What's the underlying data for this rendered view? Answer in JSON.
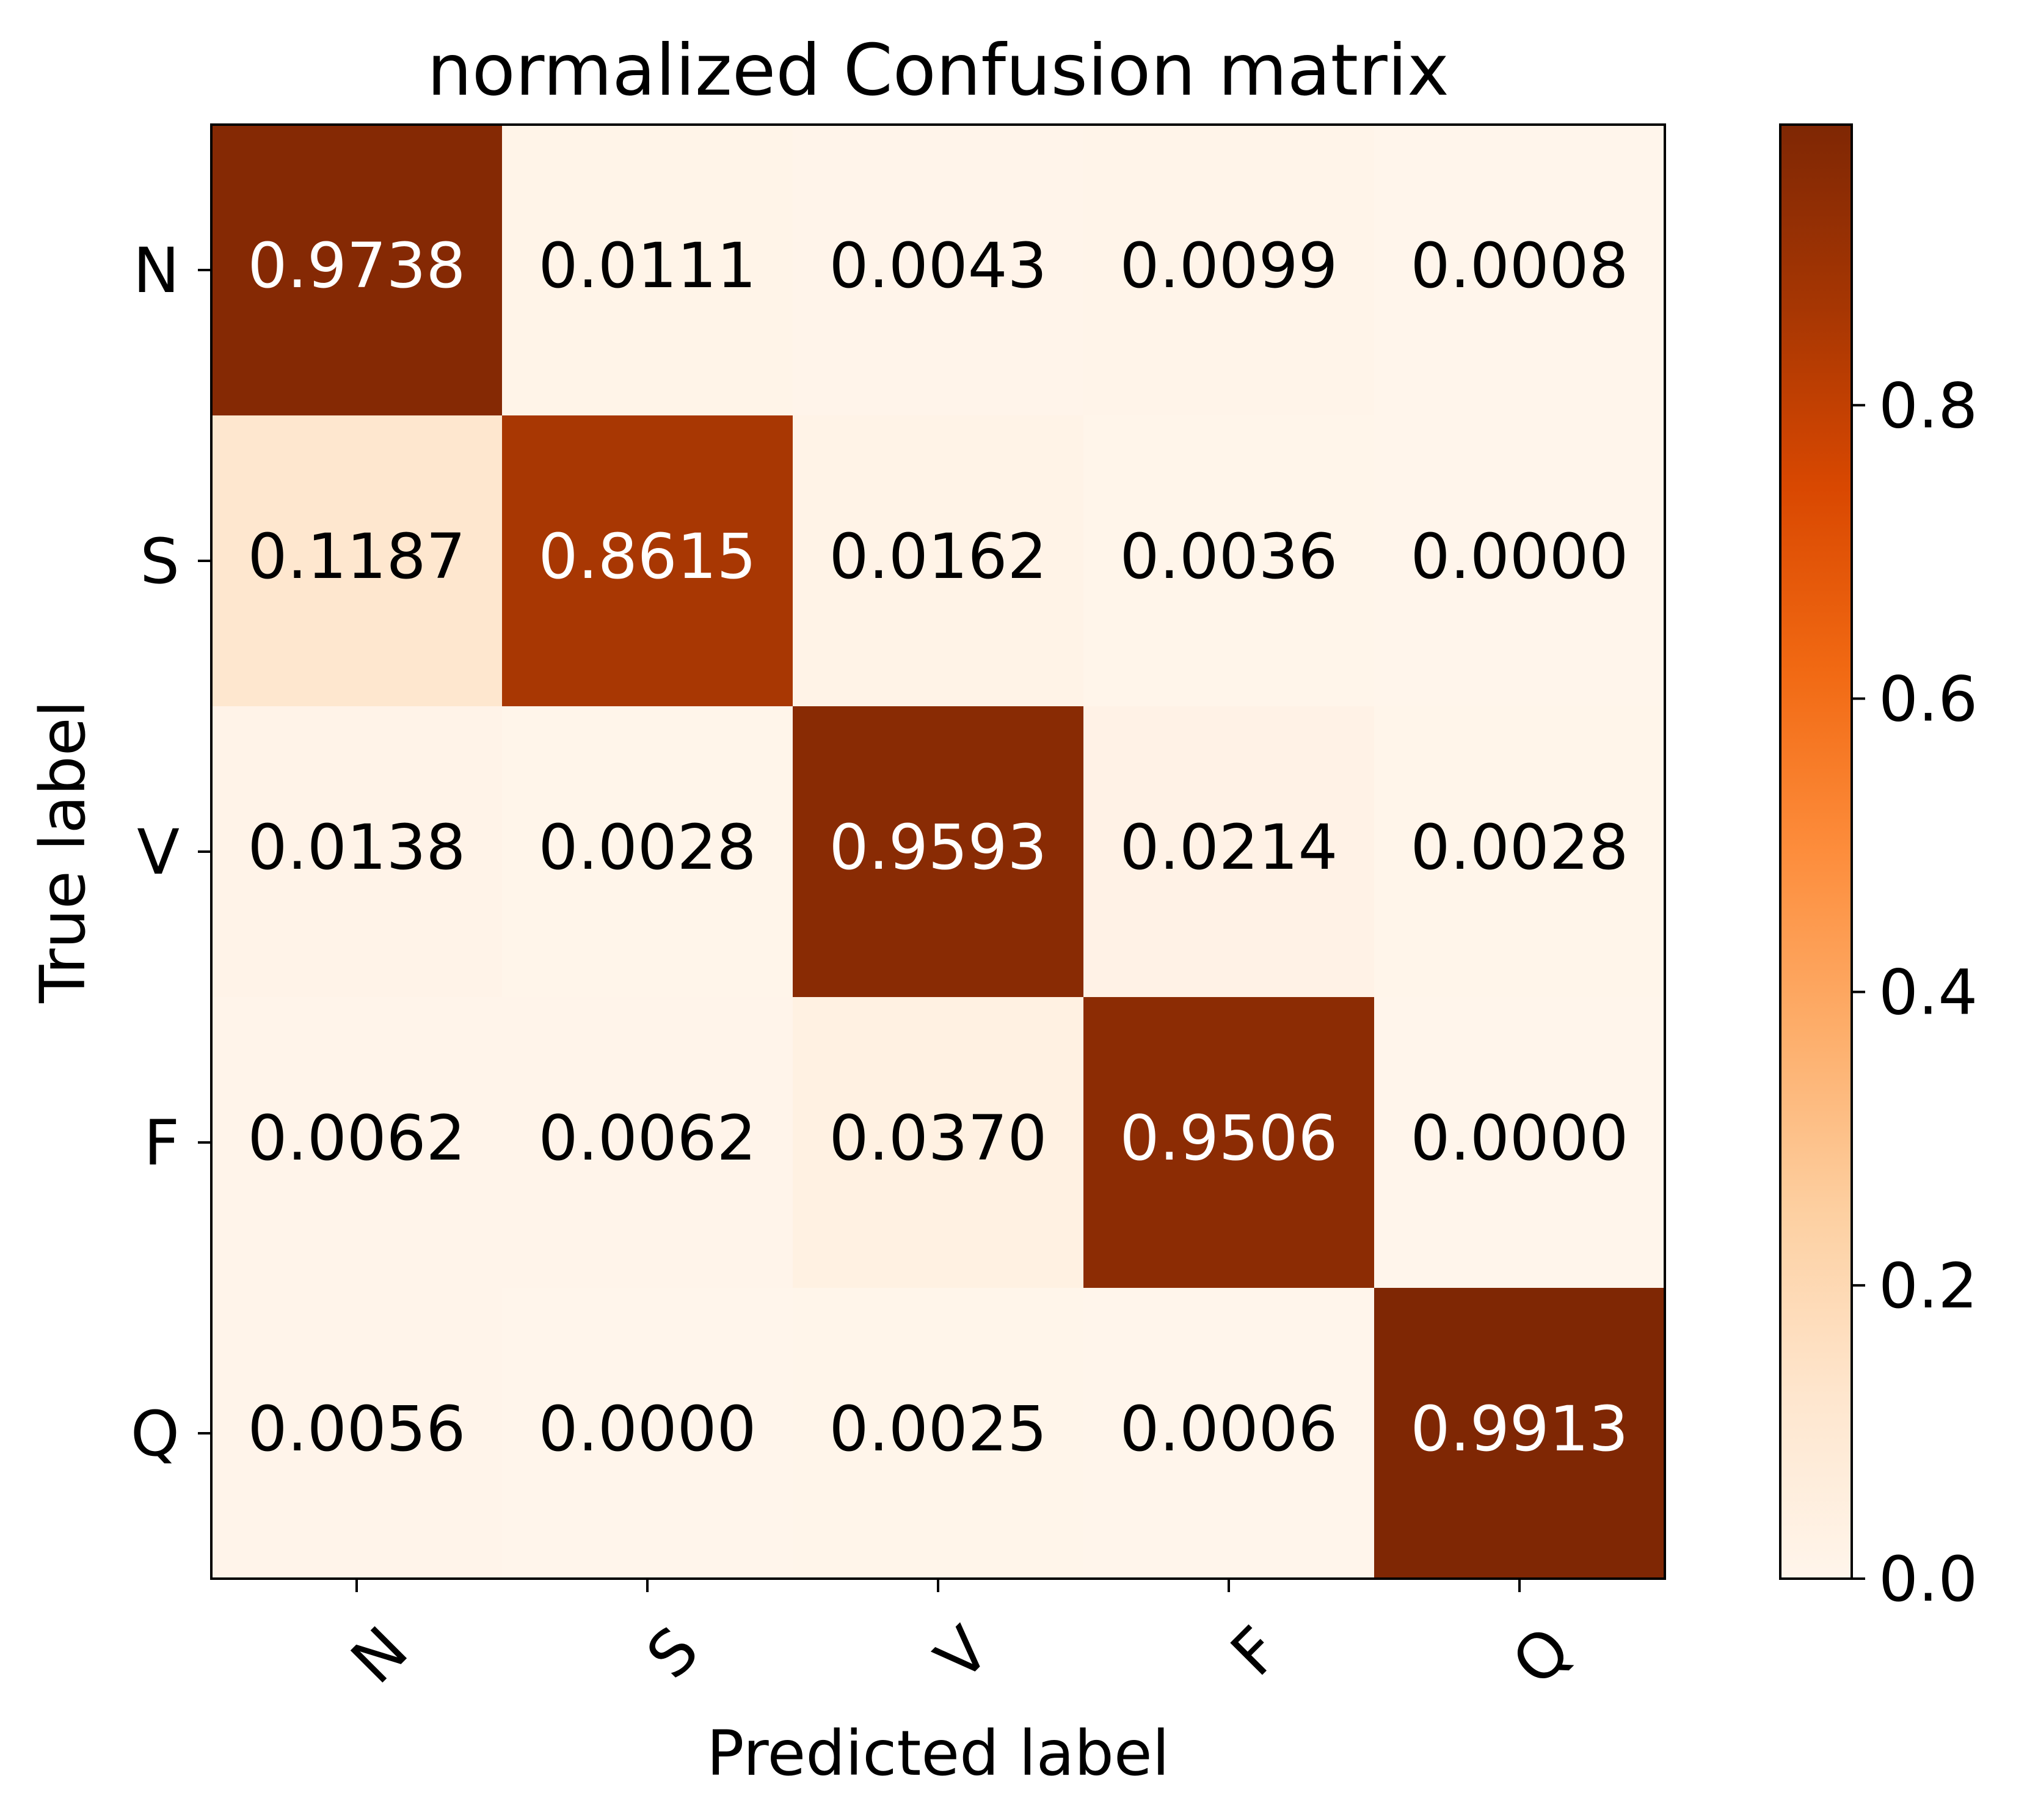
{
  "chart_data": {
    "type": "heatmap",
    "title": "normalized Confusion matrix",
    "xlabel": "Predicted label",
    "ylabel": "True label",
    "x_categories": [
      "N",
      "S",
      "V",
      "F",
      "Q"
    ],
    "y_categories": [
      "N",
      "S",
      "V",
      "F",
      "Q"
    ],
    "matrix": [
      [
        0.9738,
        0.0111,
        0.0043,
        0.0099,
        0.0008
      ],
      [
        0.1187,
        0.8615,
        0.0162,
        0.0036,
        0.0
      ],
      [
        0.0138,
        0.0028,
        0.9593,
        0.0214,
        0.0028
      ],
      [
        0.0062,
        0.0062,
        0.037,
        0.9506,
        0.0
      ],
      [
        0.0056,
        0.0,
        0.0025,
        0.0006,
        0.9913
      ]
    ],
    "cell_labels": [
      [
        "0.9738",
        "0.0111",
        "0.0043",
        "0.0099",
        "0.0008"
      ],
      [
        "0.1187",
        "0.8615",
        "0.0162",
        "0.0036",
        "0.0000"
      ],
      [
        "0.0138",
        "0.0028",
        "0.9593",
        "0.0214",
        "0.0028"
      ],
      [
        "0.0062",
        "0.0062",
        "0.0370",
        "0.9506",
        "0.0000"
      ],
      [
        "0.0056",
        "0.0000",
        "0.0025",
        "0.0006",
        "0.9913"
      ]
    ],
    "colormap": "Oranges",
    "colormap_stops": [
      "#fff5eb",
      "#fee6ce",
      "#fdd0a2",
      "#fdae6b",
      "#fd8d3c",
      "#f16913",
      "#d94801",
      "#a63603",
      "#7f2704"
    ],
    "value_range": [
      0.0,
      0.9913
    ],
    "colorbar": {
      "ticks": [
        0.0,
        0.2,
        0.4,
        0.6,
        0.8
      ],
      "tick_labels": [
        "0.0",
        "0.2",
        "0.4",
        "0.6",
        "0.8"
      ]
    },
    "text_color_dark": "#000000",
    "text_color_light": "#ffffff",
    "text_threshold": 0.4957,
    "x_tick_rotation": 45
  }
}
